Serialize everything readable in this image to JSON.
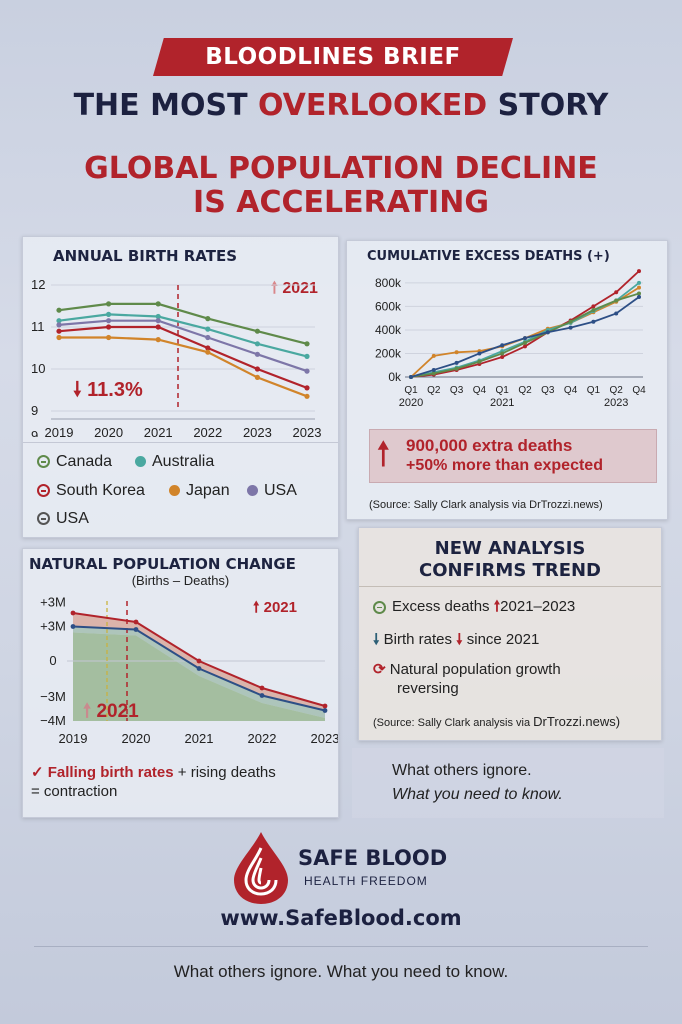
{
  "header": {
    "banner": "BLOODLINES BRIEF",
    "title_a": "THE MOST ",
    "title_b": "OVERLOOKED",
    "title_c": " STORY",
    "subtitle_1": "GLOBAL POPULATION DECLINE",
    "subtitle_2": "IS ACCELERATING"
  },
  "colors": {
    "accent_red": "#b1232b",
    "navy": "#1c2140",
    "green": "#5f8a4a",
    "teal": "#4aa8a0",
    "orange": "#d1842a",
    "purple": "#7d76a8"
  },
  "birth": {
    "title": "ANNUAL BIRTH RATES",
    "callout_year": "2021",
    "callout_drop": "11.3%",
    "y_ticks": [
      "12",
      "11",
      "10",
      "9",
      "9"
    ],
    "x_ticks": [
      "2019",
      "2020",
      "2021",
      "2022",
      "2023",
      "2023"
    ],
    "legend": {
      "canada": "Canada",
      "australia": "Australia",
      "south_korea": "South Korea",
      "japan": "Japan",
      "usa1": "USA",
      "usa2": "USA"
    }
  },
  "excess": {
    "title": "CUMULATIVE EXCESS DEATHS (+)",
    "y_ticks": [
      "800k",
      "600k",
      "400k",
      "200k",
      "0k"
    ],
    "q_ticks": [
      "Q1",
      "Q2",
      "Q3",
      "Q4",
      "Q1",
      "Q2",
      "Q3",
      "Q4",
      "Q1",
      "Q2",
      "Q4"
    ],
    "years": [
      "2020",
      "2021",
      "2023"
    ],
    "stat_1": "900,000 extra deaths",
    "stat_2": "+50% more than expected",
    "source": "(Source: Sally Clark analysis via DrTrozzi.news)"
  },
  "natural": {
    "title": "NATURAL POPULATION CHANGE",
    "subtitle": "(Births – Deaths)",
    "y_ticks": [
      "+3M",
      "+3M",
      "0",
      "−3M",
      "−4M"
    ],
    "x_ticks": [
      "2019",
      "2020",
      "2021",
      "2022",
      "2023"
    ],
    "callout_top": "2021",
    "callout_bottom": "2021",
    "note_a": "Falling birth rates",
    "note_b": " + rising deaths",
    "note_c": "= contraction"
  },
  "analysis": {
    "title_1": "NEW ANALYSIS",
    "title_2": "CONFIRMS TREND",
    "item1_a": "Excess deaths",
    "item1_b": "2021–2023",
    "item2_a": "Birth rates",
    "item2_b": "since 2021",
    "item3": "Natural population growth",
    "item3b": "reversing",
    "source_a": "(Source: Sally Clark analysis via ",
    "source_b": "DrTrozzi.news)"
  },
  "tagline": {
    "line1": "What others ignore.",
    "line2": "What you need to know."
  },
  "brand": {
    "name": "SAFE BLOOD",
    "sub": "HEALTH FREEDOM",
    "url": "www.SafeBlood.com"
  },
  "footer": "What others ignore. What you need to know.",
  "chart_data": [
    {
      "type": "line",
      "title": "ANNUAL BIRTH RATES",
      "categories": [
        "2019",
        "2020",
        "2021",
        "2022",
        "2023",
        "2023"
      ],
      "ylim": [
        9,
        12
      ],
      "series": [
        {
          "name": "Canada",
          "color": "#5f8a4a",
          "values": [
            11.4,
            11.55,
            11.55,
            11.2,
            10.9,
            10.6
          ]
        },
        {
          "name": "Australia",
          "color": "#4aa8a0",
          "values": [
            11.15,
            11.3,
            11.25,
            10.95,
            10.6,
            10.3
          ]
        },
        {
          "name": "South Korea",
          "color": "#b1232b",
          "values": [
            10.9,
            11.0,
            11.0,
            10.5,
            10.0,
            9.55
          ]
        },
        {
          "name": "Japan",
          "color": "#d1842a",
          "values": [
            10.75,
            10.75,
            10.7,
            10.4,
            9.8,
            9.35
          ]
        },
        {
          "name": "USA",
          "color": "#7d76a8",
          "values": [
            11.05,
            11.15,
            11.15,
            10.75,
            10.35,
            9.95
          ]
        }
      ]
    },
    {
      "type": "line",
      "title": "CUMULATIVE EXCESS DEATHS (+)",
      "categories": [
        "Q1",
        "Q2",
        "Q3",
        "Q4",
        "Q1",
        "Q2",
        "Q3",
        "Q4",
        "Q1",
        "Q2",
        "Q4"
      ],
      "ylim": [
        0,
        850000
      ],
      "series": [
        {
          "color": "#b1232b",
          "values": [
            0,
            20000,
            60000,
            110000,
            170000,
            260000,
            380000,
            480000,
            600000,
            720000,
            900000
          ]
        },
        {
          "color": "#d1842a",
          "values": [
            0,
            180000,
            210000,
            220000,
            260000,
            330000,
            410000,
            460000,
            550000,
            640000,
            760000
          ]
        },
        {
          "color": "#4aa8a0",
          "values": [
            0,
            40000,
            80000,
            140000,
            220000,
            300000,
            400000,
            460000,
            560000,
            650000,
            800000
          ]
        },
        {
          "color": "#5f8a4a",
          "values": [
            0,
            30000,
            70000,
            130000,
            200000,
            290000,
            380000,
            470000,
            570000,
            650000,
            710000
          ]
        },
        {
          "color": "#2d4f86",
          "values": [
            0,
            60000,
            120000,
            200000,
            270000,
            330000,
            380000,
            420000,
            470000,
            540000,
            680000
          ]
        }
      ]
    },
    {
      "type": "area",
      "title": "NATURAL POPULATION CHANGE",
      "categories": [
        "2019",
        "2020",
        "2021",
        "2022",
        "2023"
      ],
      "ylim": [
        -4,
        4
      ],
      "series": [
        {
          "color": "#b1232b",
          "values": [
            3.2,
            2.6,
            0,
            -1.8,
            -3.0
          ]
        },
        {
          "color": "#2d4f86",
          "values": [
            2.3,
            2.1,
            -0.5,
            -2.3,
            -3.3
          ]
        },
        {
          "color": "#5f8a4a",
          "values": [
            1.9,
            1.7,
            -1.0,
            -2.8,
            -3.8
          ]
        }
      ]
    }
  ]
}
